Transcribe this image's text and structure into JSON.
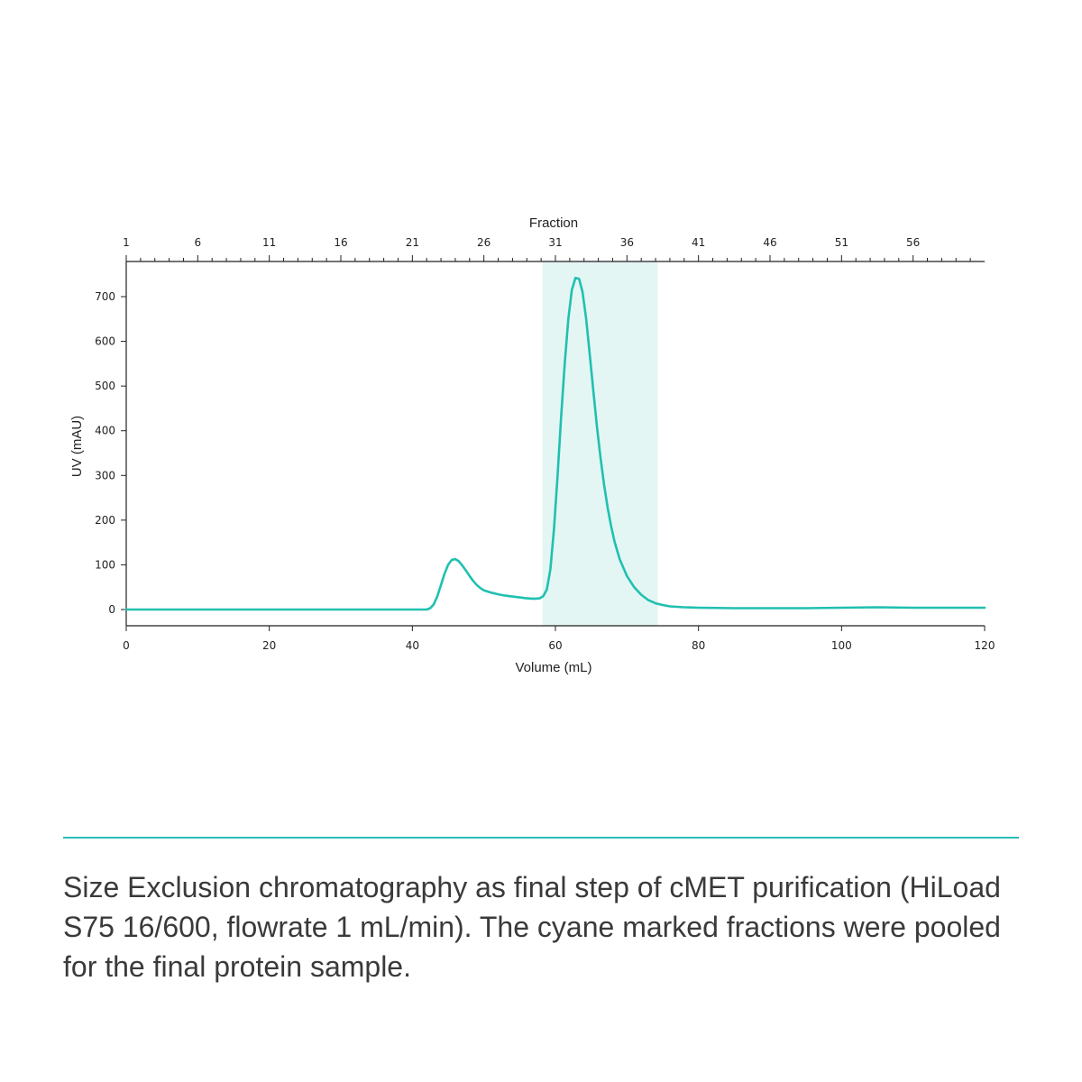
{
  "chart_data": {
    "type": "line",
    "title": "",
    "xlabel": "Volume (mL)",
    "ylabel": "UV (mAU)",
    "top_axis_label": "Fraction",
    "xlim": [
      0,
      120
    ],
    "ylim": [
      -10,
      780
    ],
    "x_ticks": [
      "0",
      "20",
      "40",
      "60",
      "80",
      "100",
      "120"
    ],
    "x_tick_values": [
      0,
      20,
      40,
      60,
      80,
      100,
      120
    ],
    "y_ticks": [
      "0",
      "100",
      "200",
      "300",
      "400",
      "500",
      "600",
      "700"
    ],
    "y_tick_values": [
      0,
      100,
      200,
      300,
      400,
      500,
      600,
      700
    ],
    "fraction_labels": [
      "1",
      "6",
      "11",
      "16",
      "21",
      "26",
      "31",
      "36",
      "41",
      "46",
      "51",
      "56"
    ],
    "fraction_volume_start": 0,
    "fraction_volume_step": 2,
    "fraction_count": 60,
    "pooled_region": {
      "x_start": 58.2,
      "x_end": 74.3,
      "color": "#e3f6f3"
    },
    "grid": false,
    "line_color": "#20c0b0",
    "series": [
      {
        "name": "",
        "points": [
          [
            0,
            0
          ],
          [
            10,
            0
          ],
          [
            20,
            0
          ],
          [
            30,
            0
          ],
          [
            40,
            0
          ],
          [
            42,
            0
          ],
          [
            42.5,
            3
          ],
          [
            43,
            12
          ],
          [
            43.5,
            30
          ],
          [
            44,
            55
          ],
          [
            44.5,
            80
          ],
          [
            45,
            100
          ],
          [
            45.5,
            111
          ],
          [
            46,
            113
          ],
          [
            46.5,
            108
          ],
          [
            47,
            98
          ],
          [
            47.5,
            87
          ],
          [
            48,
            75
          ],
          [
            48.5,
            64
          ],
          [
            49,
            55
          ],
          [
            49.5,
            48
          ],
          [
            50,
            43
          ],
          [
            51,
            38
          ],
          [
            52,
            34
          ],
          [
            53,
            31
          ],
          [
            54,
            29
          ],
          [
            55,
            27
          ],
          [
            56,
            25
          ],
          [
            57,
            24
          ],
          [
            57.8,
            25
          ],
          [
            58.3,
            30
          ],
          [
            58.8,
            45
          ],
          [
            59.3,
            90
          ],
          [
            59.8,
            180
          ],
          [
            60.3,
            300
          ],
          [
            60.8,
            430
          ],
          [
            61.3,
            550
          ],
          [
            61.8,
            650
          ],
          [
            62.3,
            715
          ],
          [
            62.8,
            742
          ],
          [
            63.3,
            740
          ],
          [
            63.8,
            710
          ],
          [
            64.3,
            650
          ],
          [
            64.8,
            570
          ],
          [
            65.3,
            490
          ],
          [
            65.8,
            410
          ],
          [
            66.3,
            340
          ],
          [
            66.8,
            280
          ],
          [
            67.3,
            228
          ],
          [
            67.8,
            185
          ],
          [
            68.3,
            150
          ],
          [
            69,
            112
          ],
          [
            70,
            75
          ],
          [
            71,
            50
          ],
          [
            72,
            33
          ],
          [
            73,
            21
          ],
          [
            74,
            14
          ],
          [
            75,
            10
          ],
          [
            76,
            7
          ],
          [
            78,
            5
          ],
          [
            80,
            4
          ],
          [
            85,
            3
          ],
          [
            90,
            3
          ],
          [
            95,
            3
          ],
          [
            100,
            4
          ],
          [
            105,
            5
          ],
          [
            110,
            4
          ],
          [
            115,
            4
          ],
          [
            120,
            4
          ]
        ]
      }
    ]
  },
  "caption": "Size Exclusion chromatography as final step of cMET purification (HiLoad S75 16/600, flowrate 1 mL/min). The cyane marked fractions were pooled for the final protein sample."
}
